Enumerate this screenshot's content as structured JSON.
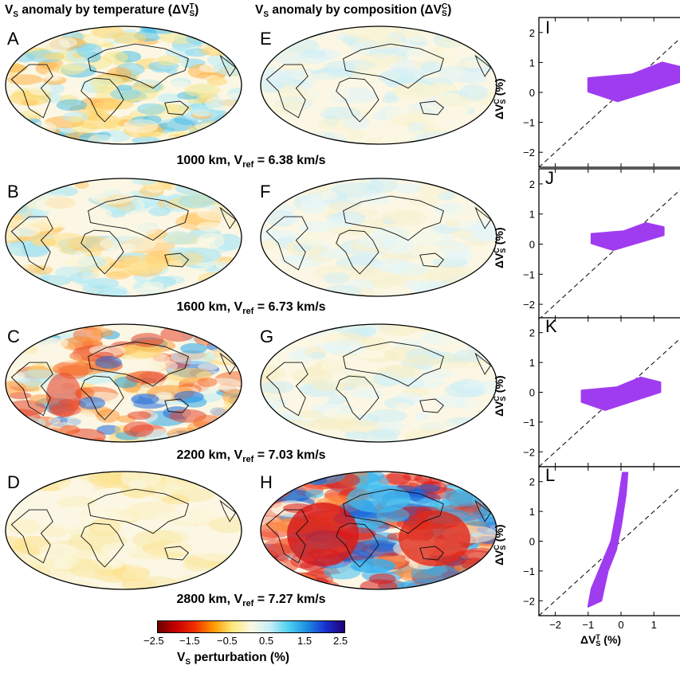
{
  "header": {
    "left": "Vₛ anomaly by temperature (ΔVₛᵀ)",
    "left_base": "V",
    "left_sub": "S",
    "left_mid": " anomaly by temperature (ΔV",
    "left_sup": "T",
    "left_sub2": "S",
    "left_end": ")",
    "right_base": "V",
    "right_sub": "S",
    "right_mid": " anomaly by composition (ΔV",
    "right_sup": "C",
    "right_sub2": "S",
    "right_end": ")"
  },
  "panels": {
    "thermal": [
      "A",
      "B",
      "C",
      "D"
    ],
    "compositional": [
      "E",
      "F",
      "G",
      "H"
    ],
    "scatter": [
      "I",
      "J",
      "K",
      "L"
    ]
  },
  "depths": [
    {
      "km": "1000 km, V",
      "sub": "ref",
      "val": " = 6.38 km/s"
    },
    {
      "km": "1600 km, V",
      "sub": "ref",
      "val": " = 6.73 km/s"
    },
    {
      "km": "2200 km, V",
      "sub": "ref",
      "val": " = 7.03 km/s"
    },
    {
      "km": "2800 km, V",
      "sub": "ref",
      "val": " = 7.27 km/s"
    }
  ],
  "colorbar": {
    "ticks": [
      "−2.5",
      "−1.5",
      "−0.5",
      "0.5",
      "1.5",
      "2.5"
    ],
    "label": "V",
    "label_sub": "S",
    "label_rest": " perturbation (%)",
    "colors": [
      "#6b0000",
      "#c80000",
      "#f03000",
      "#ff9a00",
      "#ffe97a",
      "#fbf7e4",
      "#c8eef8",
      "#4fd0f0",
      "#1b8ee0",
      "#1a2fd0",
      "#1e0072"
    ]
  },
  "scatter_axes": {
    "ticks": [
      "−2",
      "−1",
      "0",
      "1",
      "2"
    ],
    "ylabel_base": "ΔV",
    "ylabel_sup": "C",
    "ylabel_sub": "S",
    "ylabel_rest": " (%)",
    "xlabel_base": "ΔV",
    "xlabel_sup": "T",
    "xlabel_sub": "S",
    "xlabel_rest": " (%)",
    "range": [
      -2.5,
      2.5
    ],
    "point_color": "#a03cf0"
  },
  "chart_data": [
    {
      "type": "scatter",
      "panel": "I",
      "x_range": [
        -1.0,
        2.0
      ],
      "y_range": [
        -0.3,
        1.0
      ],
      "trend": "shallow positive",
      "xlim": [
        -2.5,
        2.5
      ],
      "ylim": [
        -2.5,
        2.5
      ]
    },
    {
      "type": "scatter",
      "panel": "J",
      "x_range": [
        -0.9,
        1.3
      ],
      "y_range": [
        -0.2,
        0.7
      ],
      "trend": "shallow positive",
      "xlim": [
        -2.5,
        2.5
      ],
      "ylim": [
        -2.5,
        2.5
      ]
    },
    {
      "type": "scatter",
      "panel": "K",
      "x_range": [
        -1.2,
        1.2
      ],
      "y_range": [
        -0.6,
        0.5
      ],
      "trend": "positive",
      "xlim": [
        -2.5,
        2.5
      ],
      "ylim": [
        -2.5,
        2.5
      ]
    },
    {
      "type": "scatter",
      "panel": "L",
      "x_range": [
        -1.0,
        0.2
      ],
      "y_range": [
        -2.2,
        2.3
      ],
      "trend": "steep positive",
      "xlim": [
        -2.5,
        2.5
      ],
      "ylim": [
        -2.5,
        2.5
      ]
    }
  ]
}
